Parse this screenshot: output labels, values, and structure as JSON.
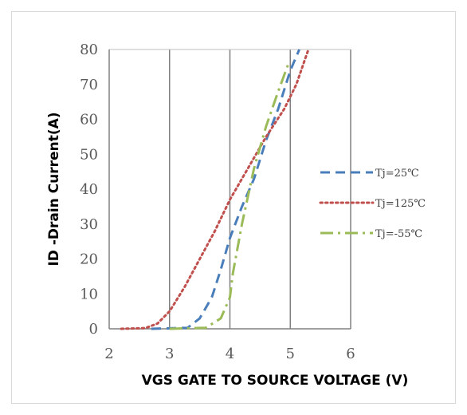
{
  "chart_data": {
    "type": "line",
    "xlabel": "VGS GATE TO SOURCE VOLTAGE (V)",
    "ylabel": "ID -Drain Current(A)",
    "xlim": [
      2,
      6
    ],
    "ylim": [
      0,
      80
    ],
    "xticks": [
      "2",
      "3",
      "4",
      "5",
      "6"
    ],
    "yticks": [
      "0",
      "10",
      "20",
      "30",
      "40",
      "50",
      "60",
      "70",
      "80"
    ],
    "grid": "vertical",
    "legend_position": "right",
    "series": [
      {
        "name": "Tj=25℃",
        "color": "#4a7ebb",
        "dash": "dashed",
        "points": [
          [
            2.7,
            0
          ],
          [
            3.3,
            0.3
          ],
          [
            3.5,
            3
          ],
          [
            3.7,
            9
          ],
          [
            3.85,
            17
          ],
          [
            4.0,
            26
          ],
          [
            4.2,
            35
          ],
          [
            4.4,
            43
          ],
          [
            4.6,
            54
          ],
          [
            4.8,
            63
          ],
          [
            5.0,
            74
          ],
          [
            5.15,
            80
          ]
        ]
      },
      {
        "name": "Tj=125℃",
        "color": "#c0504d",
        "dash": "dotted",
        "points": [
          [
            2.2,
            0
          ],
          [
            2.6,
            0.2
          ],
          [
            2.8,
            1.5
          ],
          [
            3.0,
            5
          ],
          [
            3.25,
            12
          ],
          [
            3.5,
            20
          ],
          [
            3.75,
            28
          ],
          [
            4.0,
            37
          ],
          [
            4.3,
            46
          ],
          [
            4.6,
            55
          ],
          [
            4.9,
            63
          ],
          [
            5.1,
            70
          ],
          [
            5.3,
            80
          ]
        ]
      },
      {
        "name": "Tj=-55℃",
        "color": "#9bbb59",
        "dash": "dashdot",
        "points": [
          [
            3.0,
            0
          ],
          [
            3.6,
            0.3
          ],
          [
            3.85,
            3
          ],
          [
            4.0,
            9
          ],
          [
            4.05,
            16
          ],
          [
            4.2,
            30
          ],
          [
            4.4,
            46
          ],
          [
            4.6,
            58
          ],
          [
            4.8,
            68
          ],
          [
            4.97,
            76
          ]
        ]
      }
    ]
  }
}
